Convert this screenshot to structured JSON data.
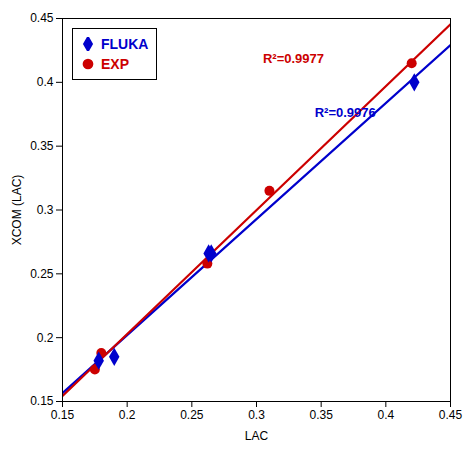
{
  "chart_data": {
    "type": "scatter",
    "xlabel": "LAC",
    "ylabel": "XCOM (LAC)",
    "xlim": [
      0.15,
      0.45
    ],
    "ylim": [
      0.15,
      0.45
    ],
    "xticks": [
      0.15,
      0.2,
      0.25,
      0.3,
      0.35,
      0.4,
      0.45
    ],
    "yticks": [
      0.15,
      0.2,
      0.25,
      0.3,
      0.35,
      0.4,
      0.45
    ],
    "grid": false,
    "legend": "upper left",
    "series": [
      {
        "name": "FLUKA",
        "color": "#0000cc",
        "marker": "diamond",
        "x": [
          0.178,
          0.19,
          0.263,
          0.265,
          0.422
        ],
        "values": [
          0.182,
          0.185,
          0.266,
          0.266,
          0.4
        ],
        "fit_x": [
          0.15,
          0.45
        ],
        "fit_values": [
          0.15659,
          0.42916
        ]
      },
      {
        "name": "EXP",
        "color": "#cc0000",
        "marker": "circle",
        "x": [
          0.175,
          0.18,
          0.262,
          0.31,
          0.42
        ],
        "values": [
          0.175,
          0.188,
          0.258,
          0.315,
          0.415
        ],
        "fit_x": [
          0.15,
          0.45
        ],
        "fit_values": [
          0.15437,
          0.4454
        ]
      }
    ],
    "annotations": [
      {
        "text": "R²=0.9977",
        "x": 0.305,
        "y": 0.415,
        "color": "#cc0000"
      },
      {
        "text": "R²=0.9976",
        "x": 0.345,
        "y": 0.373,
        "color": "#0000cc"
      }
    ]
  }
}
